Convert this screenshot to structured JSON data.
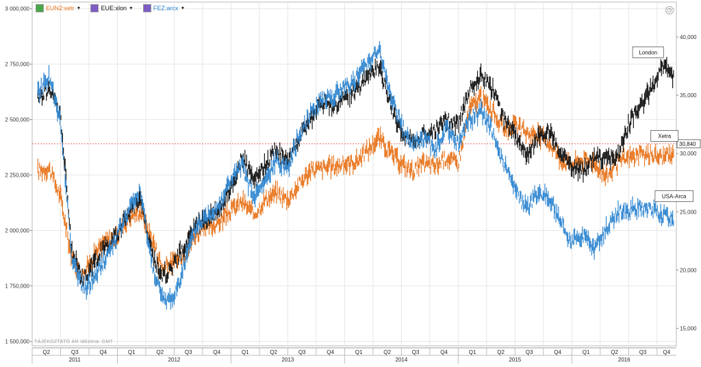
{
  "legend": [
    {
      "label": "EUN2:xetr",
      "color": "#e8741c"
    },
    {
      "label": "EUE:xlon",
      "color": "#111111"
    },
    {
      "label": "FEZ:arcx",
      "color": "#2f86d0"
    }
  ],
  "footer_note": "TÁJÉKOZTATÓ ÁR   Időzóna: GMT",
  "chart_data": {
    "type": "line",
    "left_axis": {
      "ticks": [
        "3 000,000",
        "2 750,000",
        "2 500,000",
        "2 250,000",
        "2 000,000",
        "1 750,000",
        "1 500,000"
      ],
      "tick_values": [
        3000000,
        2750000,
        2500000,
        2250000,
        2000000,
        1750000,
        1500000
      ],
      "ylim": [
        1480000,
        3030000
      ]
    },
    "right_axis": {
      "ticks": [
        "40,000",
        "35,000",
        "30,000",
        "25,000",
        "20,000",
        "15,000"
      ],
      "tick_values": [
        40000,
        35000,
        30000,
        25000,
        20000,
        15000
      ],
      "ylim": [
        13500,
        43000
      ]
    },
    "price_marker": {
      "label": "30,840",
      "value": 30840,
      "color": "#e05050"
    },
    "x_axis": {
      "quarters": [
        {
          "label": "Q2",
          "year": 2011,
          "q": 2
        },
        {
          "label": "Q3",
          "year": 2011,
          "q": 3
        },
        {
          "label": "Q4",
          "year": 2011,
          "q": 4
        },
        {
          "label": "Q1",
          "year": 2012,
          "q": 1
        },
        {
          "label": "Q2",
          "year": 2012,
          "q": 2
        },
        {
          "label": "Q3",
          "year": 2012,
          "q": 3
        },
        {
          "label": "Q4",
          "year": 2012,
          "q": 4
        },
        {
          "label": "Q1",
          "year": 2013,
          "q": 1
        },
        {
          "label": "Q2",
          "year": 2013,
          "q": 2
        },
        {
          "label": "Q3",
          "year": 2013,
          "q": 3
        },
        {
          "label": "Q4",
          "year": 2013,
          "q": 4
        },
        {
          "label": "Q1",
          "year": 2014,
          "q": 1
        },
        {
          "label": "Q2",
          "year": 2014,
          "q": 2
        },
        {
          "label": "Q3",
          "year": 2014,
          "q": 3
        },
        {
          "label": "Q4",
          "year": 2014,
          "q": 4
        },
        {
          "label": "Q1",
          "year": 2015,
          "q": 1
        },
        {
          "label": "Q2",
          "year": 2015,
          "q": 2
        },
        {
          "label": "Q3",
          "year": 2015,
          "q": 3
        },
        {
          "label": "Q4",
          "year": 2015,
          "q": 4
        },
        {
          "label": "Q1",
          "year": 2016,
          "q": 1
        },
        {
          "label": "Q2",
          "year": 2016,
          "q": 2
        },
        {
          "label": "Q3",
          "year": 2016,
          "q": 3
        },
        {
          "label": "Q4",
          "year": 2016,
          "q": 4
        }
      ],
      "years": [
        "2011",
        "2012",
        "2013",
        "2014",
        "2015",
        "2016"
      ],
      "range": [
        2011.25,
        2016.92
      ]
    },
    "grid": true,
    "annotations": [
      {
        "text": "London",
        "series": "EUE:xlon"
      },
      {
        "text": "Xetra",
        "series": "EUN2:xetr"
      },
      {
        "text": "USA-Arca",
        "series": "FEZ:arcx"
      }
    ],
    "series": [
      {
        "name": "EUN2:xetr",
        "axis": "left",
        "color": "#e8741c",
        "x": [
          2011.3,
          2011.4,
          2011.5,
          2011.6,
          2011.7,
          2011.8,
          2011.9,
          2012.0,
          2012.1,
          2012.2,
          2012.3,
          2012.4,
          2012.5,
          2012.6,
          2012.7,
          2012.8,
          2012.9,
          2013.0,
          2013.1,
          2013.2,
          2013.3,
          2013.4,
          2013.5,
          2013.6,
          2013.7,
          2013.8,
          2013.9,
          2014.0,
          2014.1,
          2014.2,
          2014.3,
          2014.4,
          2014.5,
          2014.6,
          2014.7,
          2014.8,
          2014.9,
          2015.0,
          2015.1,
          2015.2,
          2015.3,
          2015.4,
          2015.5,
          2015.6,
          2015.7,
          2015.8,
          2015.9,
          2016.0,
          2016.1,
          2016.2,
          2016.3,
          2016.4,
          2016.5,
          2016.6,
          2016.7,
          2016.8,
          2016.9
        ],
        "y": [
          2270000,
          2280000,
          2150000,
          1870000,
          1800000,
          1900000,
          1950000,
          1980000,
          2060000,
          2090000,
          1970000,
          1830000,
          1860000,
          1900000,
          1990000,
          2010000,
          2040000,
          2090000,
          2130000,
          2070000,
          2140000,
          2170000,
          2140000,
          2210000,
          2270000,
          2280000,
          2290000,
          2300000,
          2310000,
          2360000,
          2420000,
          2350000,
          2300000,
          2270000,
          2300000,
          2290000,
          2330000,
          2300000,
          2550000,
          2600000,
          2540000,
          2460000,
          2470000,
          2440000,
          2430000,
          2400000,
          2320000,
          2300000,
          2320000,
          2310000,
          2240000,
          2300000,
          2330000,
          2340000,
          2340000,
          2330000,
          2340000
        ]
      },
      {
        "name": "EUE:xlon",
        "axis": "left",
        "color": "#111111",
        "x": [
          2011.3,
          2011.4,
          2011.5,
          2011.6,
          2011.7,
          2011.8,
          2011.9,
          2012.0,
          2012.1,
          2012.2,
          2012.3,
          2012.4,
          2012.5,
          2012.6,
          2012.7,
          2012.8,
          2012.9,
          2013.0,
          2013.1,
          2013.2,
          2013.3,
          2013.4,
          2013.5,
          2013.6,
          2013.7,
          2013.8,
          2013.9,
          2014.0,
          2014.1,
          2014.2,
          2014.3,
          2014.4,
          2014.5,
          2014.6,
          2014.7,
          2014.8,
          2014.9,
          2015.0,
          2015.1,
          2015.2,
          2015.3,
          2015.4,
          2015.5,
          2015.6,
          2015.7,
          2015.8,
          2015.9,
          2016.0,
          2016.1,
          2016.2,
          2016.3,
          2016.4,
          2016.5,
          2016.6,
          2016.7,
          2016.8,
          2016.9
        ],
        "y": [
          2590000,
          2640000,
          2520000,
          1900000,
          1780000,
          1860000,
          1930000,
          1980000,
          2080000,
          2150000,
          1900000,
          1790000,
          1850000,
          1940000,
          2030000,
          2060000,
          2100000,
          2200000,
          2330000,
          2220000,
          2290000,
          2370000,
          2310000,
          2420000,
          2500000,
          2580000,
          2550000,
          2600000,
          2630000,
          2700000,
          2740000,
          2580000,
          2440000,
          2400000,
          2430000,
          2450000,
          2500000,
          2480000,
          2640000,
          2700000,
          2640000,
          2500000,
          2430000,
          2330000,
          2420000,
          2450000,
          2350000,
          2290000,
          2270000,
          2330000,
          2320000,
          2330000,
          2480000,
          2560000,
          2640000,
          2750000,
          2680000
        ]
      },
      {
        "name": "FEZ:arcx",
        "axis": "left",
        "color": "#2f86d0",
        "x": [
          2011.3,
          2011.4,
          2011.5,
          2011.6,
          2011.7,
          2011.8,
          2011.9,
          2012.0,
          2012.1,
          2012.2,
          2012.3,
          2012.4,
          2012.5,
          2012.6,
          2012.7,
          2012.8,
          2012.9,
          2013.0,
          2013.1,
          2013.2,
          2013.3,
          2013.4,
          2013.5,
          2013.6,
          2013.7,
          2013.8,
          2013.9,
          2014.0,
          2014.1,
          2014.2,
          2014.3,
          2014.4,
          2014.5,
          2014.6,
          2014.7,
          2014.8,
          2014.9,
          2015.0,
          2015.1,
          2015.2,
          2015.3,
          2015.4,
          2015.5,
          2015.6,
          2015.7,
          2015.8,
          2015.9,
          2016.0,
          2016.1,
          2016.2,
          2016.3,
          2016.4,
          2016.5,
          2016.6,
          2016.7,
          2016.8,
          2016.9
        ],
        "y": [
          2620000,
          2700000,
          2480000,
          1880000,
          1730000,
          1790000,
          1880000,
          1980000,
          2090000,
          2180000,
          1860000,
          1680000,
          1700000,
          1870000,
          2020000,
          2070000,
          2120000,
          2230000,
          2290000,
          2140000,
          2220000,
          2320000,
          2280000,
          2430000,
          2530000,
          2600000,
          2600000,
          2650000,
          2680000,
          2760000,
          2820000,
          2620000,
          2470000,
          2390000,
          2420000,
          2360000,
          2460000,
          2390000,
          2500000,
          2540000,
          2450000,
          2300000,
          2180000,
          2100000,
          2170000,
          2150000,
          2040000,
          1950000,
          1980000,
          1920000,
          2000000,
          2080000,
          2090000,
          2100000,
          2090000,
          2070000,
          2050000
        ]
      }
    ]
  }
}
